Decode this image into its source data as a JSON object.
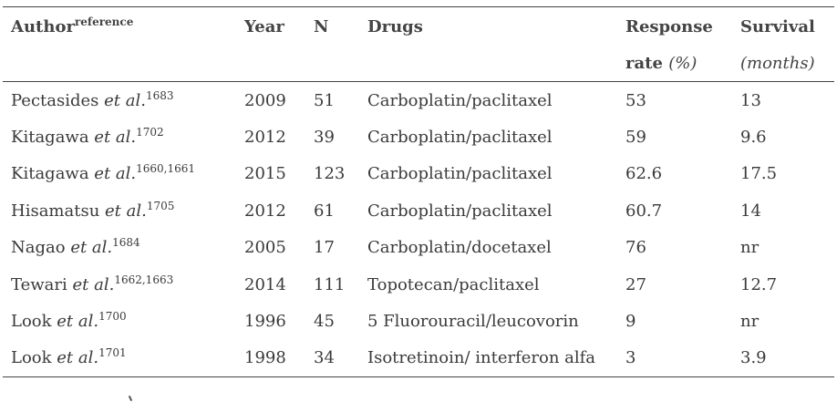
{
  "table": {
    "headers": {
      "author": "Author",
      "author_sup": "reference",
      "year": "Year",
      "n": "N",
      "drugs": "Drugs",
      "response": "Response",
      "response_unit_prefix": "rate",
      "response_unit": "(%)",
      "survival": "Survival",
      "survival_unit": "(months)"
    },
    "rows": [
      {
        "author": "Pectasides",
        "etal": "et al.",
        "ref": "1683",
        "year": "2009",
        "n": "51",
        "drugs": "Carboplatin/paclitaxel",
        "response": "53",
        "survival": "13"
      },
      {
        "author": "Kitagawa",
        "etal": "et al.",
        "ref": "1702",
        "year": "2012",
        "n": "39",
        "drugs": "Carboplatin/paclitaxel",
        "response": "59",
        "survival": "9.6"
      },
      {
        "author": "Kitagawa",
        "etal": "et al.",
        "ref": "1660,1661",
        "year": "2015",
        "n": "123",
        "drugs": "Carboplatin/paclitaxel",
        "response": "62.6",
        "survival": "17.5"
      },
      {
        "author": "Hisamatsu",
        "etal": "et al.",
        "ref": "1705",
        "year": "2012",
        "n": "61",
        "drugs": "Carboplatin/paclitaxel",
        "response": "60.7",
        "survival": "14"
      },
      {
        "author": "Nagao",
        "etal": "et al.",
        "ref": "1684",
        "year": "2005",
        "n": "17",
        "drugs": "Carboplatin/docetaxel",
        "response": "76",
        "survival": "nr"
      },
      {
        "author": "Tewari",
        "etal": "et al.",
        "ref": "1662,1663",
        "year": "2014",
        "n": "111",
        "drugs": "Topotecan/paclitaxel",
        "response": "27",
        "survival": "12.7"
      },
      {
        "author": "Look",
        "etal": "et al.",
        "ref": "1700",
        "year": "1996",
        "n": "45",
        "drugs": "5 Fluorouracil/leucovorin",
        "response": "9",
        "survival": "nr"
      },
      {
        "author": "Look",
        "etal": "et al.",
        "ref": "1701",
        "year": "1998",
        "n": "34",
        "drugs": "Isotretinoin/ interferon alfa",
        "response": "3",
        "survival": "3.9"
      }
    ]
  }
}
